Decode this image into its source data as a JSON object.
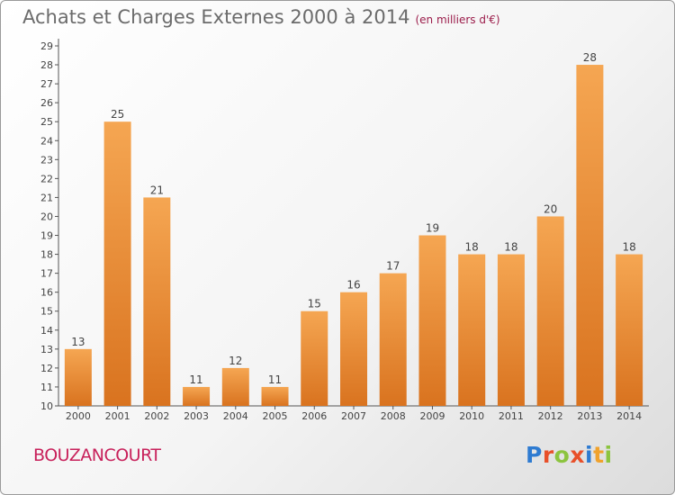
{
  "header": {
    "title": "Achats et Charges Externes 2000 à 2014",
    "subtitle": "(en milliers d'€)"
  },
  "footer": {
    "commune": "BOUZANCOURT",
    "logo_text": "Proxiti"
  },
  "colors": {
    "bar_top": "#f5a652",
    "bar_bottom": "#d9731f",
    "commune": "#c8215b",
    "logo_letters": [
      "#2e7bd1",
      "#e8502a",
      "#8cc43f",
      "#e8502a",
      "#2e7bd1",
      "#f0a22c",
      "#8cc43f"
    ]
  },
  "chart_data": {
    "type": "bar",
    "categories": [
      "2000",
      "2001",
      "2002",
      "2003",
      "2004",
      "2005",
      "2006",
      "2007",
      "2008",
      "2009",
      "2010",
      "2011",
      "2012",
      "2013",
      "2014"
    ],
    "values": [
      13,
      25,
      21,
      11,
      12,
      11,
      15,
      16,
      17,
      19,
      18,
      18,
      20,
      28,
      18
    ],
    "ylim": [
      10,
      29
    ],
    "yticks": [
      "10",
      "11",
      "12",
      "13",
      "14",
      "15",
      "16",
      "17",
      "18",
      "19",
      "20",
      "21",
      "22",
      "23",
      "24",
      "25",
      "26",
      "27",
      "28",
      "29"
    ],
    "grid": false,
    "legend": "none"
  }
}
